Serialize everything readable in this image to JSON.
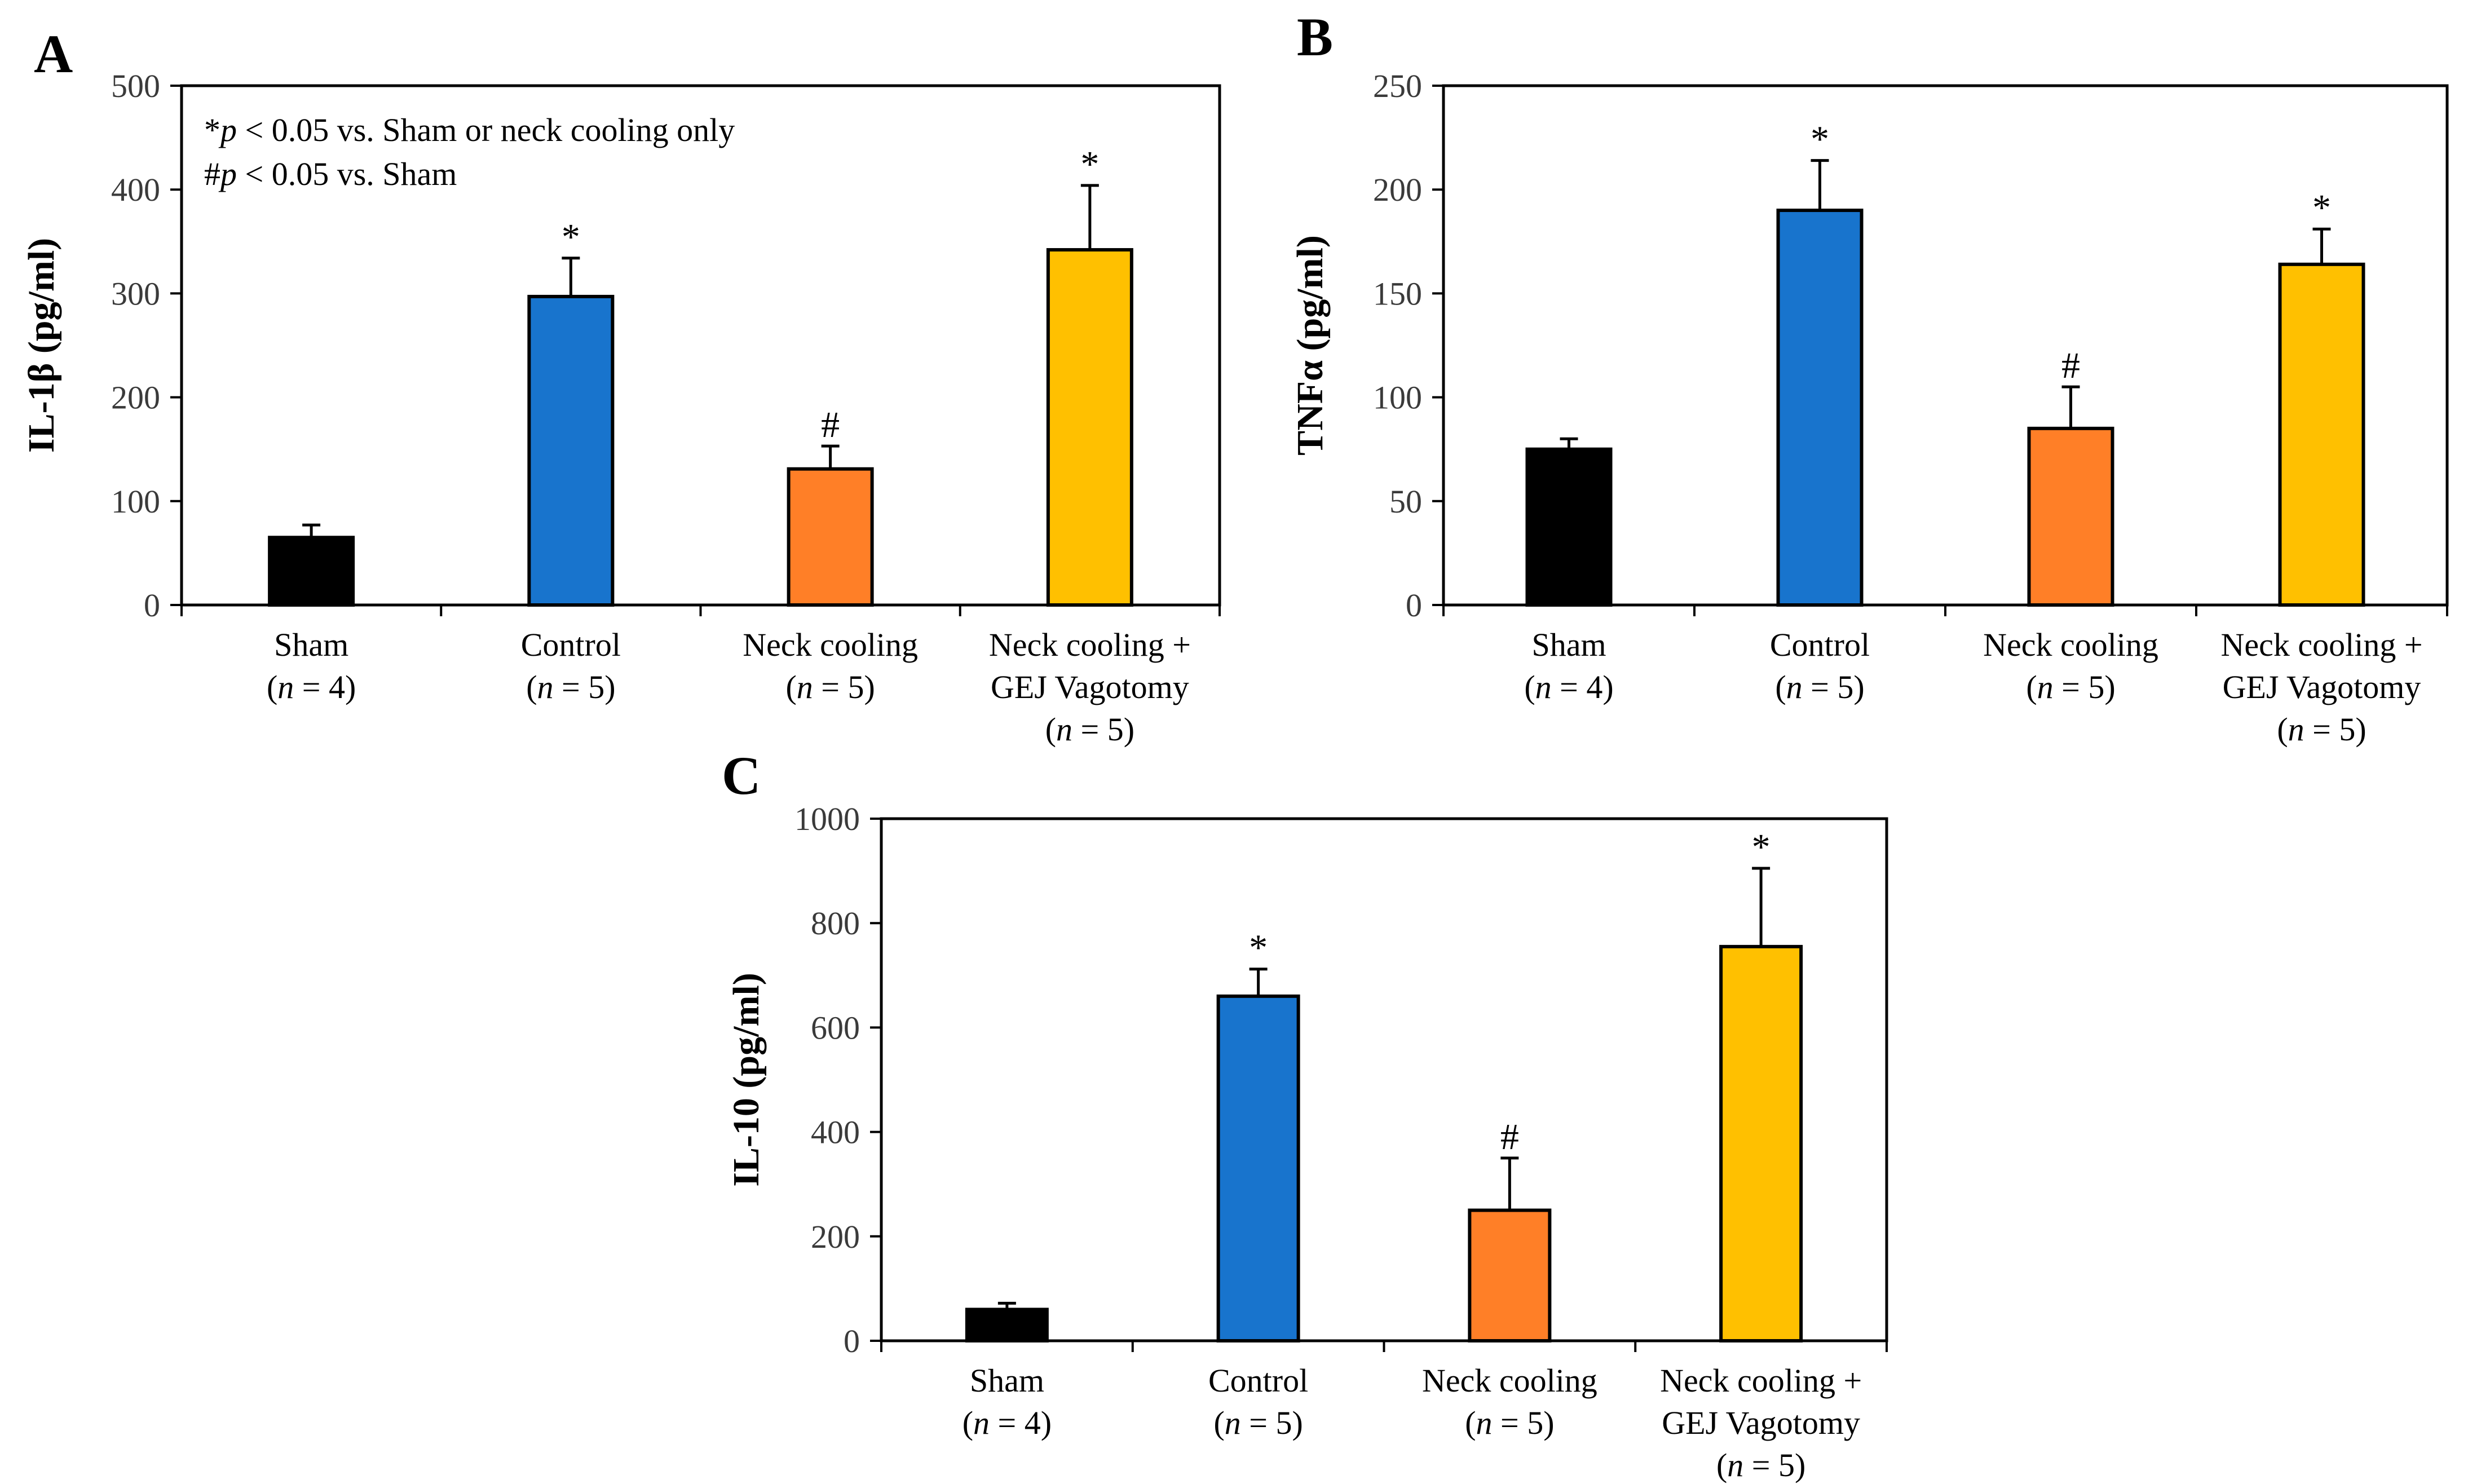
{
  "figure": {
    "legend_notes": [
      {
        "symbol": "*",
        "p": "p",
        "rest": " < 0.05 vs. Sham or neck cooling only"
      },
      {
        "symbol": "#",
        "p": "p",
        "rest": " < 0.05 vs. Sham"
      }
    ]
  },
  "chart_data": [
    {
      "panel": "A",
      "type": "bar",
      "title": "",
      "xlabel": "",
      "ylabel": "IL-1β (pg/ml)",
      "ylim": [
        0,
        500
      ],
      "yticks": [
        0,
        100,
        200,
        300,
        400,
        500
      ],
      "grid": false,
      "categories": [
        {
          "lines": [
            "Sham",
            "(n = 4)"
          ]
        },
        {
          "lines": [
            "Control",
            "(n = 5)"
          ]
        },
        {
          "lines": [
            "Neck cooling",
            "(n = 5)"
          ]
        },
        {
          "lines": [
            "Neck cooling +",
            "GEJ Vagotomy",
            "(n = 5)"
          ]
        }
      ],
      "values": [
        65,
        297,
        131,
        342
      ],
      "errors": [
        12,
        37,
        22,
        62
      ],
      "annotations": [
        "",
        "*",
        "#",
        "*"
      ],
      "colors": [
        "#000000",
        "#1874CD",
        "#FF7F27",
        "#FFC000"
      ]
    },
    {
      "panel": "B",
      "type": "bar",
      "title": "",
      "xlabel": "",
      "ylabel": "TNFα (pg/ml)",
      "ylim": [
        0,
        250
      ],
      "yticks": [
        0,
        50,
        100,
        150,
        200,
        250
      ],
      "grid": false,
      "categories": [
        {
          "lines": [
            "Sham",
            "(n = 4)"
          ]
        },
        {
          "lines": [
            "Control",
            "(n = 5)"
          ]
        },
        {
          "lines": [
            "Neck cooling",
            "(n = 5)"
          ]
        },
        {
          "lines": [
            "Neck cooling +",
            "GEJ Vagotomy",
            "(n = 5)"
          ]
        }
      ],
      "values": [
        75,
        190,
        85,
        164
      ],
      "errors": [
        5,
        24,
        20,
        17
      ],
      "annotations": [
        "",
        "*",
        "#",
        "*"
      ],
      "colors": [
        "#000000",
        "#1874CD",
        "#FF7F27",
        "#FFC000"
      ]
    },
    {
      "panel": "C",
      "type": "bar",
      "title": "",
      "xlabel": "",
      "ylabel": "IL-10 (pg/ml)",
      "ylim": [
        0,
        1000
      ],
      "yticks": [
        0,
        200,
        400,
        600,
        800,
        1000
      ],
      "grid": false,
      "categories": [
        {
          "lines": [
            "Sham",
            "(n = 4)"
          ]
        },
        {
          "lines": [
            "Control",
            "(n = 5)"
          ]
        },
        {
          "lines": [
            "Neck cooling",
            "(n = 5)"
          ]
        },
        {
          "lines": [
            "Neck cooling +",
            "GEJ Vagotomy",
            "(n = 5)"
          ]
        }
      ],
      "values": [
        60,
        660,
        250,
        755
      ],
      "errors": [
        12,
        52,
        100,
        150
      ],
      "annotations": [
        "",
        "*",
        "#",
        "*"
      ],
      "colors": [
        "#000000",
        "#1874CD",
        "#FF7F27",
        "#FFC000"
      ]
    }
  ]
}
